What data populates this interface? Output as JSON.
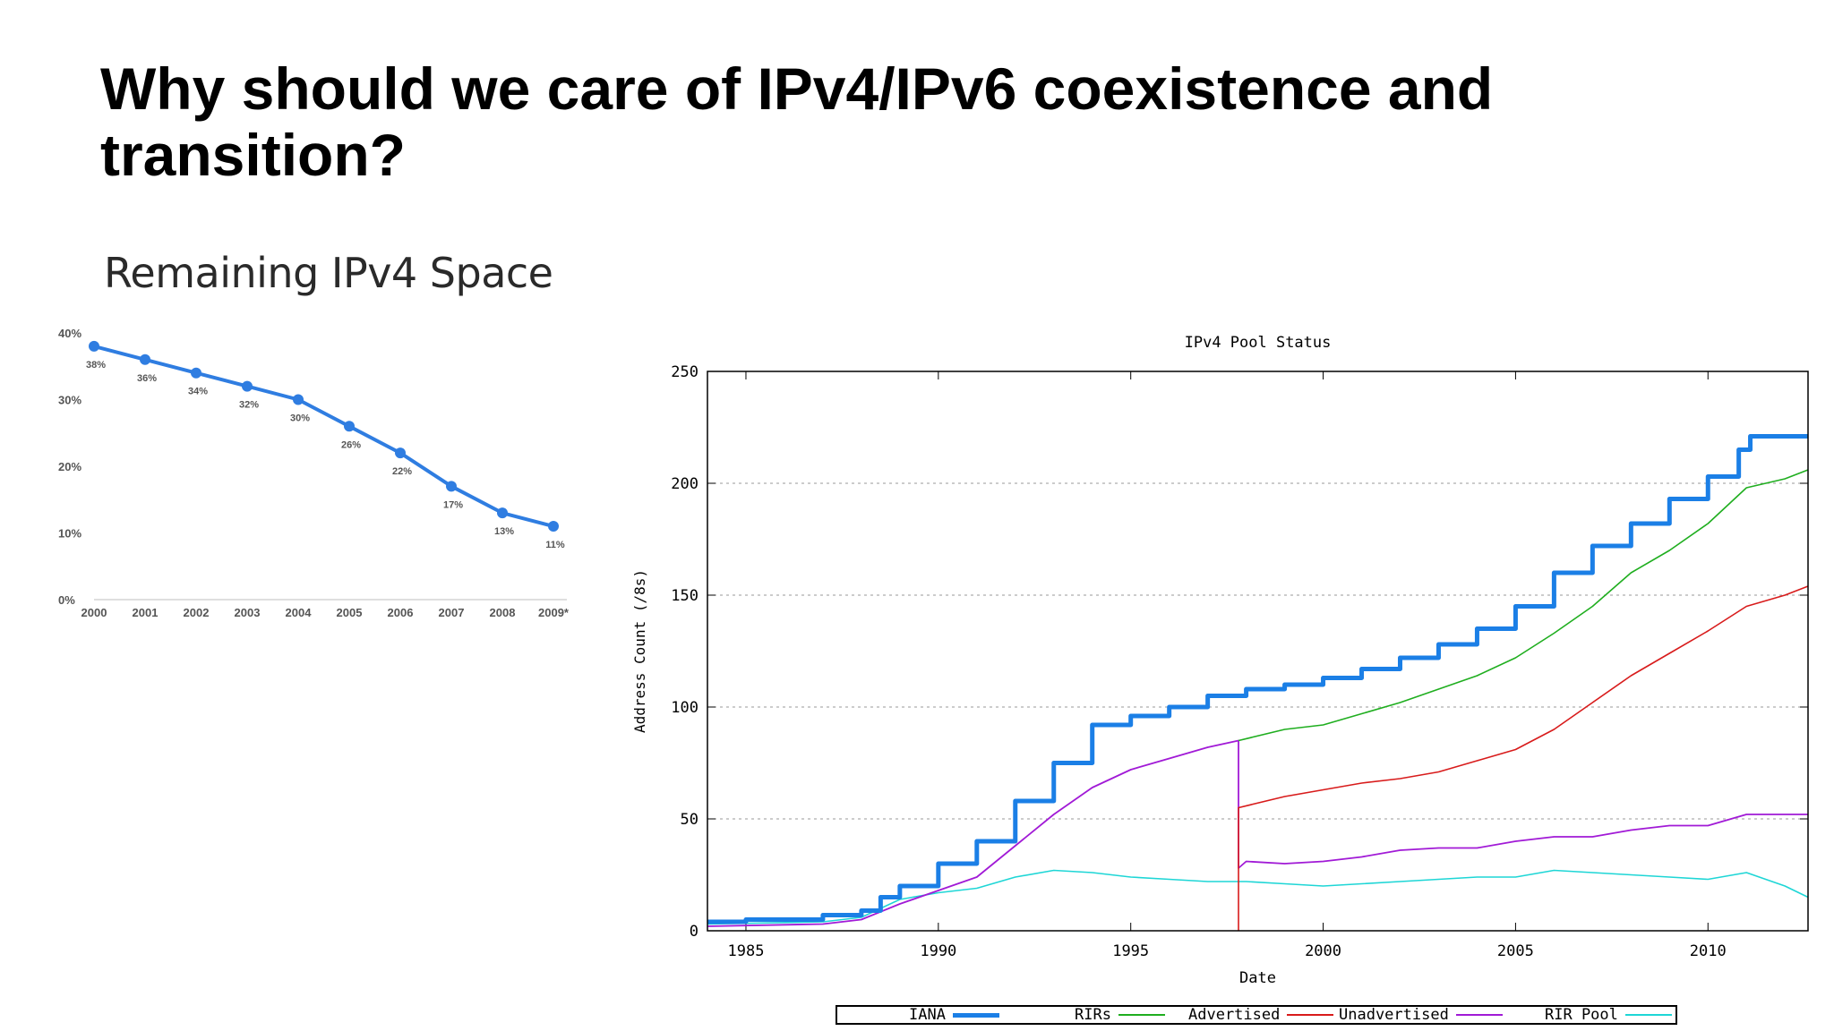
{
  "slide": {
    "title": "Why should we care of IPv4/IPv6 coexistence and transition?"
  },
  "chart_data": [
    {
      "type": "line",
      "title": "Remaining IPv4 Space",
      "categories": [
        "2000",
        "2001",
        "2002",
        "2003",
        "2004",
        "2005",
        "2006",
        "2007",
        "2008",
        "2009*"
      ],
      "values": [
        38,
        36,
        34,
        32,
        30,
        26,
        22,
        17,
        13,
        11
      ],
      "data_labels": [
        "38%",
        "36%",
        "34%",
        "32%",
        "30%",
        "26%",
        "22%",
        "17%",
        "13%",
        "11%"
      ],
      "y_ticks": [
        "0%",
        "10%",
        "20%",
        "30%",
        "40%"
      ],
      "ylim": [
        0,
        40
      ],
      "color": "#2f7de1",
      "grid": false
    },
    {
      "type": "line",
      "title": "IPv4 Pool Status",
      "xlabel": "Date",
      "ylabel": "Address Count (/8s)",
      "xlim": [
        1984,
        2012.6
      ],
      "ylim": [
        0,
        250
      ],
      "x_ticks": [
        "1985",
        "1990",
        "1995",
        "2000",
        "2005",
        "2010"
      ],
      "y_ticks": [
        "0",
        "50",
        "100",
        "150",
        "200",
        "250"
      ],
      "grid": true,
      "legend_position": "bottom",
      "series": [
        {
          "name": "IANA",
          "color": "#1b7fe6",
          "points": [
            [
              1984,
              4
            ],
            [
              1985,
              5
            ],
            [
              1987,
              7
            ],
            [
              1988,
              9
            ],
            [
              1988.5,
              15
            ],
            [
              1989,
              20
            ],
            [
              1990,
              30
            ],
            [
              1991,
              40
            ],
            [
              1992,
              58
            ],
            [
              1993,
              75
            ],
            [
              1994,
              92
            ],
            [
              1995,
              96
            ],
            [
              1996,
              100
            ],
            [
              1997,
              105
            ],
            [
              1998,
              108
            ],
            [
              1999,
              110
            ],
            [
              2000,
              113
            ],
            [
              2001,
              117
            ],
            [
              2002,
              122
            ],
            [
              2003,
              128
            ],
            [
              2004,
              135
            ],
            [
              2005,
              145
            ],
            [
              2006,
              160
            ],
            [
              2007,
              172
            ],
            [
              2008,
              182
            ],
            [
              2009,
              193
            ],
            [
              2010,
              203
            ],
            [
              2010.8,
              215
            ],
            [
              2011.1,
              221
            ],
            [
              2012.6,
              221
            ]
          ]
        },
        {
          "name": "RIRs",
          "color": "#1fae1f",
          "points": [
            [
              1997.8,
              85
            ],
            [
              1999,
              90
            ],
            [
              2000,
              92
            ],
            [
              2001,
              97
            ],
            [
              2002,
              102
            ],
            [
              2003,
              108
            ],
            [
              2004,
              114
            ],
            [
              2005,
              122
            ],
            [
              2006,
              133
            ],
            [
              2007,
              145
            ],
            [
              2008,
              160
            ],
            [
              2009,
              170
            ],
            [
              2010,
              182
            ],
            [
              2011,
              198
            ],
            [
              2012,
              202
            ],
            [
              2012.6,
              206
            ]
          ]
        },
        {
          "name": "Advertised",
          "color": "#d81b1b",
          "points": [
            [
              1997.8,
              0
            ],
            [
              1997.8,
              55
            ],
            [
              1999,
              60
            ],
            [
              2000,
              63
            ],
            [
              2001,
              66
            ],
            [
              2002,
              68
            ],
            [
              2003,
              71
            ],
            [
              2004,
              76
            ],
            [
              2005,
              81
            ],
            [
              2006,
              90
            ],
            [
              2007,
              102
            ],
            [
              2008,
              114
            ],
            [
              2009,
              124
            ],
            [
              2010,
              134
            ],
            [
              2011,
              145
            ],
            [
              2012,
              150
            ],
            [
              2012.6,
              154
            ]
          ]
        },
        {
          "name": "Unadvertised",
          "color": "#a11ad6",
          "points": [
            [
              1984,
              2
            ],
            [
              1987,
              3
            ],
            [
              1988,
              5
            ],
            [
              1989,
              12
            ],
            [
              1990,
              18
            ],
            [
              1991,
              24
            ],
            [
              1992,
              38
            ],
            [
              1993,
              52
            ],
            [
              1994,
              64
            ],
            [
              1995,
              72
            ],
            [
              1996,
              77
            ],
            [
              1997,
              82
            ],
            [
              1997.8,
              85
            ],
            [
              1997.8,
              28
            ],
            [
              1998,
              31
            ],
            [
              1999,
              30
            ],
            [
              2000,
              31
            ],
            [
              2001,
              33
            ],
            [
              2002,
              36
            ],
            [
              2003,
              37
            ],
            [
              2004,
              37
            ],
            [
              2005,
              40
            ],
            [
              2006,
              42
            ],
            [
              2007,
              42
            ],
            [
              2008,
              45
            ],
            [
              2009,
              47
            ],
            [
              2010,
              47
            ],
            [
              2011,
              52
            ],
            [
              2012.6,
              52
            ]
          ]
        },
        {
          "name": "RIR Pool",
          "color": "#1ed6d6",
          "points": [
            [
              1984,
              3
            ],
            [
              1987,
              4
            ],
            [
              1988,
              6
            ],
            [
              1989,
              14
            ],
            [
              1990,
              17
            ],
            [
              1991,
              19
            ],
            [
              1992,
              24
            ],
            [
              1993,
              27
            ],
            [
              1994,
              26
            ],
            [
              1995,
              24
            ],
            [
              1996,
              23
            ],
            [
              1997,
              22
            ],
            [
              1998,
              22
            ],
            [
              1999,
              21
            ],
            [
              2000,
              20
            ],
            [
              2001,
              21
            ],
            [
              2002,
              22
            ],
            [
              2003,
              23
            ],
            [
              2004,
              24
            ],
            [
              2005,
              24
            ],
            [
              2006,
              27
            ],
            [
              2007,
              26
            ],
            [
              2008,
              25
            ],
            [
              2009,
              24
            ],
            [
              2010,
              23
            ],
            [
              2011,
              26
            ],
            [
              2012,
              20
            ],
            [
              2012.6,
              15
            ]
          ]
        }
      ]
    }
  ]
}
